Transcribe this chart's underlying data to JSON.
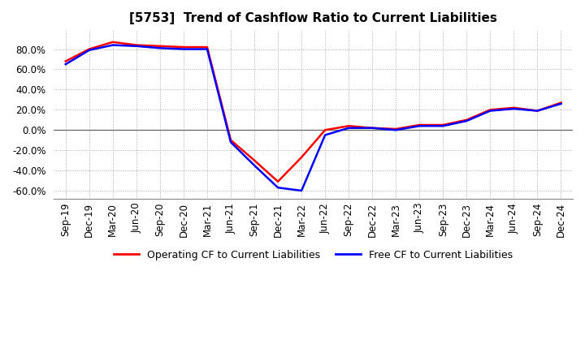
{
  "title": "[5753]  Trend of Cashflow Ratio to Current Liabilities",
  "legend_labels": [
    "Operating CF to Current Liabilities",
    "Free CF to Current Liabilities"
  ],
  "line_colors": [
    "#ff0000",
    "#0000ff"
  ],
  "ylim": [
    -0.68,
    0.98
  ],
  "yticks": [
    -0.6,
    -0.4,
    -0.2,
    0.0,
    0.2,
    0.4,
    0.6,
    0.8
  ],
  "ytick_labels": [
    "-60.0%",
    "-40.0%",
    "-20.0%",
    "0.0%",
    "20.0%",
    "40.0%",
    "60.0%",
    "80.0%"
  ],
  "x_labels": [
    "Sep-19",
    "Dec-19",
    "Mar-20",
    "Jun-20",
    "Sep-20",
    "Dec-20",
    "Mar-21",
    "Jun-21",
    "Sep-21",
    "Dec-21",
    "Mar-22",
    "Jun-22",
    "Sep-22",
    "Dec-22",
    "Mar-23",
    "Jun-23",
    "Sep-23",
    "Dec-23",
    "Mar-24",
    "Jun-24",
    "Sep-24",
    "Dec-24"
  ],
  "operating_cf": [
    0.68,
    0.8,
    0.87,
    0.84,
    0.83,
    0.82,
    0.82,
    -0.1,
    -0.3,
    -0.51,
    -0.27,
    0.0,
    0.04,
    0.02,
    0.01,
    0.05,
    0.05,
    0.1,
    0.2,
    0.22,
    0.19,
    0.27
  ],
  "free_cf": [
    0.65,
    0.79,
    0.84,
    0.83,
    0.81,
    0.8,
    0.8,
    -0.12,
    -0.35,
    -0.57,
    -0.6,
    -0.05,
    0.02,
    0.02,
    0.0,
    0.04,
    0.04,
    0.09,
    0.19,
    0.21,
    0.19,
    0.26
  ],
  "background_color": "#ffffff",
  "grid_color": "#aaaaaa",
  "title_fontsize": 11,
  "tick_fontsize": 8.5,
  "legend_fontsize": 9
}
